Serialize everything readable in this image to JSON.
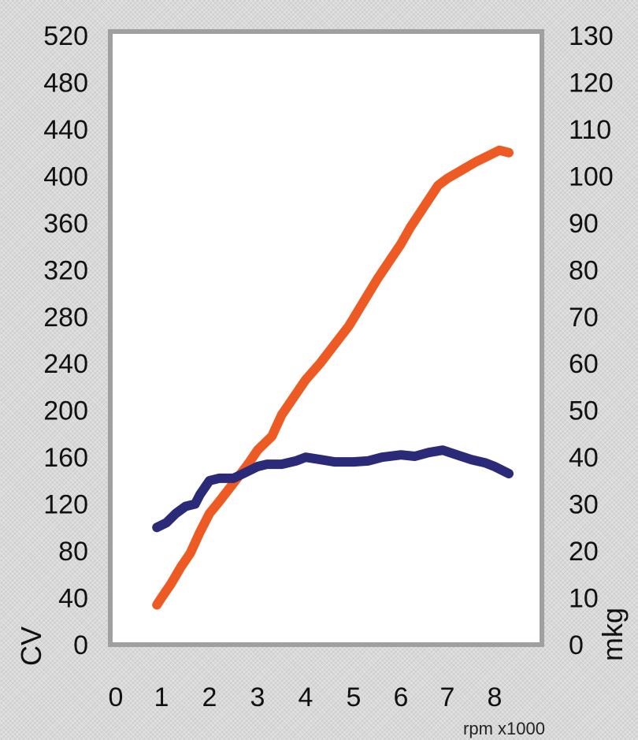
{
  "chart_data": {
    "type": "line",
    "title": "",
    "xlabel": "rpm x1000",
    "ylabel_left": "CV",
    "ylabel_right": "mkg",
    "x_ticks": [
      "0",
      "1",
      "2",
      "3",
      "4",
      "5",
      "6",
      "7",
      "8"
    ],
    "xlim": [
      0,
      8.5
    ],
    "y_left_ticks": [
      "0",
      "40",
      "80",
      "120",
      "160",
      "200",
      "240",
      "280",
      "320",
      "360",
      "400",
      "440",
      "480",
      "520"
    ],
    "ylim_left": [
      0,
      520
    ],
    "y_right_ticks": [
      "0",
      "10",
      "20",
      "30",
      "40",
      "50",
      "60",
      "70",
      "80",
      "90",
      "100",
      "110",
      "120",
      "130"
    ],
    "ylim_right": [
      0,
      130
    ],
    "grid": false,
    "colors": {
      "power": "#ee5a24",
      "torque": "#2b2a78",
      "plot_bg": "#ffffff",
      "frame": "#a0a0a0"
    },
    "series": [
      {
        "axis": "left",
        "x": [
          0.9,
          1.0,
          1.2,
          1.4,
          1.6,
          1.8,
          2.0,
          2.2,
          2.5,
          2.8,
          3.0,
          3.3,
          3.5,
          3.8,
          4.0,
          4.3,
          4.6,
          4.9,
          5.2,
          5.5,
          5.8,
          6.0,
          6.2,
          6.5,
          6.8,
          7.0,
          7.3,
          7.6,
          7.9,
          8.1,
          8.3
        ],
        "y": [
          34,
          40,
          52,
          66,
          78,
          96,
          112,
          122,
          138,
          154,
          166,
          178,
          196,
          214,
          226,
          240,
          256,
          272,
          292,
          312,
          330,
          342,
          356,
          374,
          392,
          398,
          405,
          412,
          418,
          422,
          420
        ]
      },
      {
        "axis": "right",
        "x": [
          0.9,
          1.1,
          1.3,
          1.5,
          1.7,
          1.8,
          2.0,
          2.2,
          2.5,
          2.7,
          3.0,
          3.2,
          3.5,
          3.8,
          4.0,
          4.3,
          4.6,
          5.0,
          5.3,
          5.6,
          6.0,
          6.3,
          6.6,
          6.9,
          7.2,
          7.5,
          7.8,
          8.0,
          8.3
        ],
        "y": [
          25,
          26,
          28,
          29.5,
          30,
          32,
          35,
          35.5,
          35.5,
          36.5,
          38,
          38.5,
          38.5,
          39.2,
          40,
          39.5,
          39,
          39,
          39.2,
          40,
          40.5,
          40.2,
          41,
          41.5,
          40.5,
          39.5,
          38.8,
          38,
          36.5
        ]
      }
    ]
  }
}
